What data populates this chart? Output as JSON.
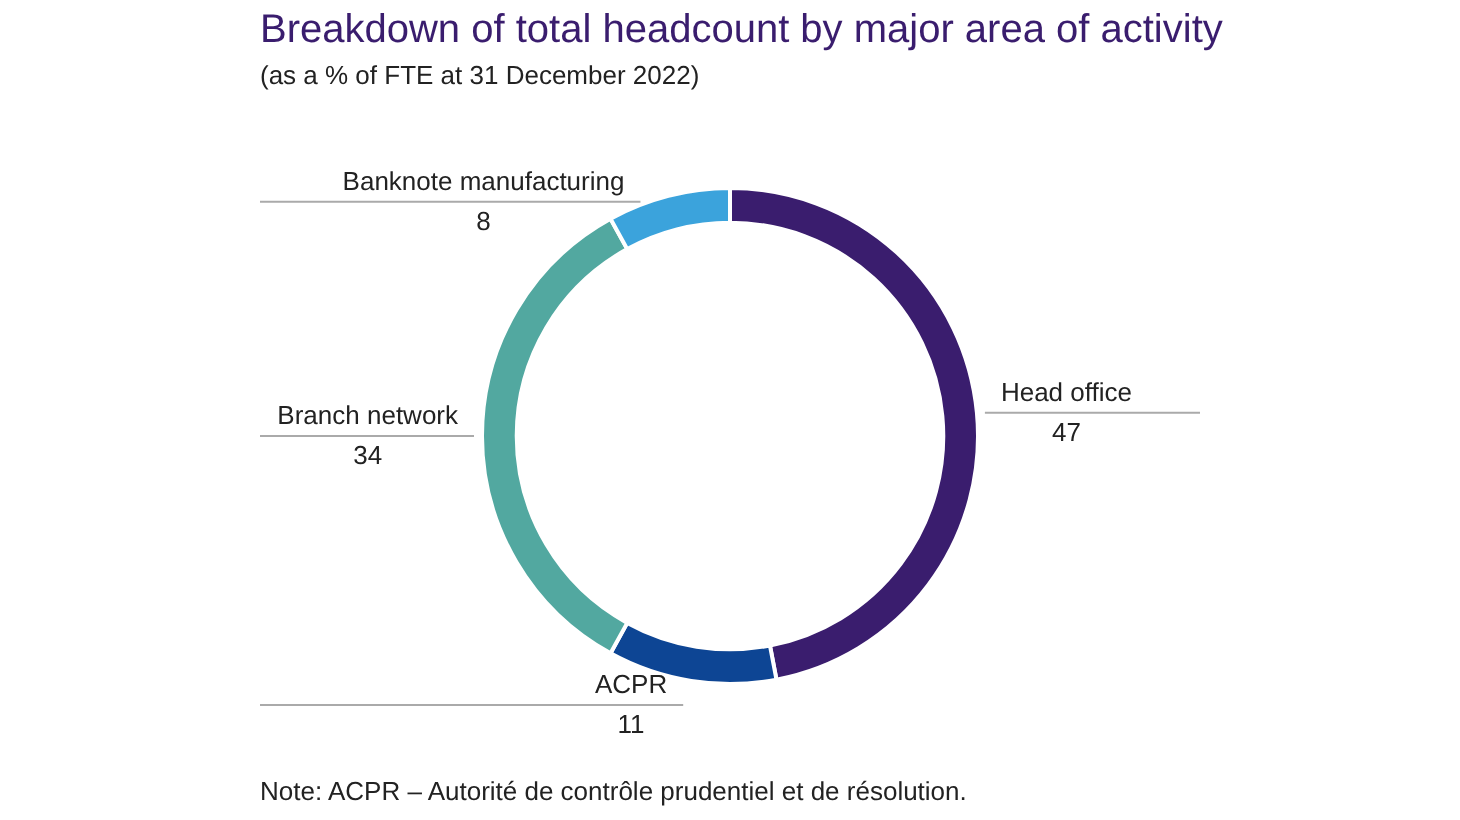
{
  "chart_data": {
    "type": "donut",
    "title": "Breakdown of total headcount by major area of activity",
    "subtitle": "(as a % of FTE at 31 December 2022)",
    "categories": [
      "Head office",
      "ACPR",
      "Branch network",
      "Banknote manufacturing"
    ],
    "values": [
      47,
      11,
      34,
      8
    ],
    "colors": [
      "#3a1d6e",
      "#0d4594",
      "#52a8a0",
      "#3ba3dc"
    ],
    "data_labels": true,
    "legend": false,
    "annotations": [
      "Note: ACPR – Autorité de contrôle prudentiel et de résolution."
    ]
  }
}
